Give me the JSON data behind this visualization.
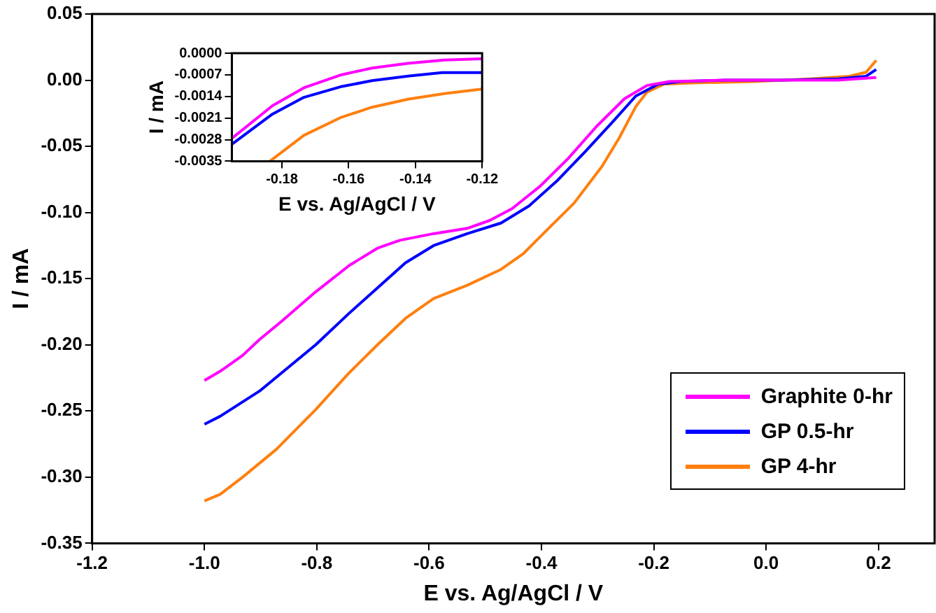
{
  "chart_data": [
    {
      "type": "line",
      "xlabel": "E vs. Ag/AgCl / V",
      "ylabel": "I / mA",
      "xlim": [
        -1.2,
        0.3
      ],
      "ylim": [
        -0.35,
        0.05
      ],
      "xticks": [
        {
          "value": -1.2,
          "label": "-1.2"
        },
        {
          "value": -1.0,
          "label": "-1.0"
        },
        {
          "value": -0.8,
          "label": "-0.8"
        },
        {
          "value": -0.6,
          "label": "-0.6"
        },
        {
          "value": -0.4,
          "label": "-0.4"
        },
        {
          "value": -0.2,
          "label": "-0.2"
        },
        {
          "value": 0,
          "label": "0.0"
        },
        {
          "value": 0.2,
          "label": "0.2"
        }
      ],
      "yticks": [
        {
          "value": -0.35,
          "label": "-0.35"
        },
        {
          "value": -0.3,
          "label": "-0.30"
        },
        {
          "value": -0.25,
          "label": "-0.25"
        },
        {
          "value": -0.2,
          "label": "-0.20"
        },
        {
          "value": -0.15,
          "label": "-0.15"
        },
        {
          "value": -0.1,
          "label": "-0.10"
        },
        {
          "value": -0.05,
          "label": "-0.05"
        },
        {
          "value": 0,
          "label": "0.00"
        },
        {
          "value": 0.05,
          "label": "0.05"
        }
      ],
      "grid": false,
      "legend": "bottom right",
      "series": [
        {
          "name": "Graphite 0-hr",
          "color": "#ff00ff",
          "x": [
            -1.0,
            -0.972,
            -0.932,
            -0.902,
            -0.862,
            -0.802,
            -0.742,
            -0.692,
            -0.652,
            -0.592,
            -0.532,
            -0.492,
            -0.452,
            -0.402,
            -0.352,
            -0.302,
            -0.252,
            -0.212,
            -0.172,
            -0.072,
            0.028,
            0.128,
            0.196
          ],
          "values": [
            -0.227,
            -0.22,
            -0.208,
            -0.196,
            -0.182,
            -0.16,
            -0.14,
            -0.127,
            -0.121,
            -0.116,
            -0.112,
            -0.106,
            -0.097,
            -0.08,
            -0.059,
            -0.035,
            -0.014,
            -0.004,
            -0.001,
            0,
            0,
            0,
            0.002
          ]
        },
        {
          "name": "GP 0.5-hr",
          "color": "#0000ff",
          "x": [
            -1.0,
            -0.972,
            -0.902,
            -0.862,
            -0.802,
            -0.742,
            -0.692,
            -0.642,
            -0.592,
            -0.532,
            -0.472,
            -0.422,
            -0.372,
            -0.322,
            -0.272,
            -0.232,
            -0.192,
            -0.152,
            -0.072,
            0.028,
            0.128,
            0.178,
            0.196
          ],
          "values": [
            -0.26,
            -0.254,
            -0.235,
            -0.221,
            -0.2,
            -0.176,
            -0.157,
            -0.138,
            -0.125,
            -0.116,
            -0.108,
            -0.095,
            -0.076,
            -0.054,
            -0.031,
            -0.012,
            -0.003,
            -0.001,
            0,
            0,
            0.001,
            0.003,
            0.008
          ]
        },
        {
          "name": "GP 4-hr",
          "color": "#ff7f0e",
          "x": [
            -1.0,
            -0.972,
            -0.932,
            -0.872,
            -0.802,
            -0.742,
            -0.692,
            -0.642,
            -0.592,
            -0.532,
            -0.472,
            -0.432,
            -0.392,
            -0.342,
            -0.292,
            -0.262,
            -0.232,
            -0.212,
            -0.182,
            -0.122,
            -0.022,
            0.078,
            0.148,
            0.178,
            0.196
          ],
          "values": [
            -0.318,
            -0.313,
            -0.3,
            -0.279,
            -0.249,
            -0.221,
            -0.2,
            -0.18,
            -0.165,
            -0.155,
            -0.143,
            -0.131,
            -0.114,
            -0.093,
            -0.065,
            -0.044,
            -0.02,
            -0.009,
            -0.003,
            -0.002,
            -0.001,
            0.001,
            0.003,
            0.006,
            0.015
          ]
        }
      ]
    },
    {
      "type": "line",
      "xlabel": "E vs. Ag/AgCl / V",
      "ylabel": "I / mA",
      "xlim": [
        -0.195,
        -0.12
      ],
      "ylim": [
        -0.0035,
        0
      ],
      "xticks": [
        {
          "value": -0.18,
          "label": "-0.18"
        },
        {
          "value": -0.16,
          "label": "-0.16"
        },
        {
          "value": -0.14,
          "label": "-0.14"
        },
        {
          "value": -0.12,
          "label": "-0.12"
        }
      ],
      "yticks": [
        {
          "value": -0.0035,
          "label": "-0.0035"
        },
        {
          "value": -0.0028,
          "label": "-0.0028"
        },
        {
          "value": -0.0021,
          "label": "-0.0021"
        },
        {
          "value": -0.0014,
          "label": "-0.0014"
        },
        {
          "value": -0.0007,
          "label": "-0.0007"
        },
        {
          "value": 0,
          "label": "0.0000"
        }
      ],
      "grid": false,
      "series": [
        {
          "color": "#ff00ff",
          "x": [
            -0.195,
            -0.1828,
            -0.1734,
            -0.1625,
            -0.153,
            -0.1422,
            -0.1313,
            -0.12
          ],
          "values": [
            -0.00276,
            -0.0017,
            -0.00112,
            -0.00071,
            -0.00048,
            -0.00033,
            -0.00022,
            -0.00018
          ]
        },
        {
          "color": "#0000ff",
          "x": [
            -0.195,
            -0.1828,
            -0.1734,
            -0.1625,
            -0.153,
            -0.1422,
            -0.132,
            -0.12
          ],
          "values": [
            -0.00295,
            -0.00197,
            -0.00143,
            -0.00109,
            -0.00089,
            -0.00074,
            -0.00063,
            -0.00063
          ]
        },
        {
          "color": "#ff7f0e",
          "x": [
            -0.1836,
            -0.1734,
            -0.1625,
            -0.153,
            -0.1422,
            -0.1313,
            -0.12
          ],
          "values": [
            -0.0035,
            -0.00266,
            -0.00209,
            -0.00175,
            -0.00149,
            -0.00131,
            -0.00116
          ]
        }
      ]
    }
  ]
}
